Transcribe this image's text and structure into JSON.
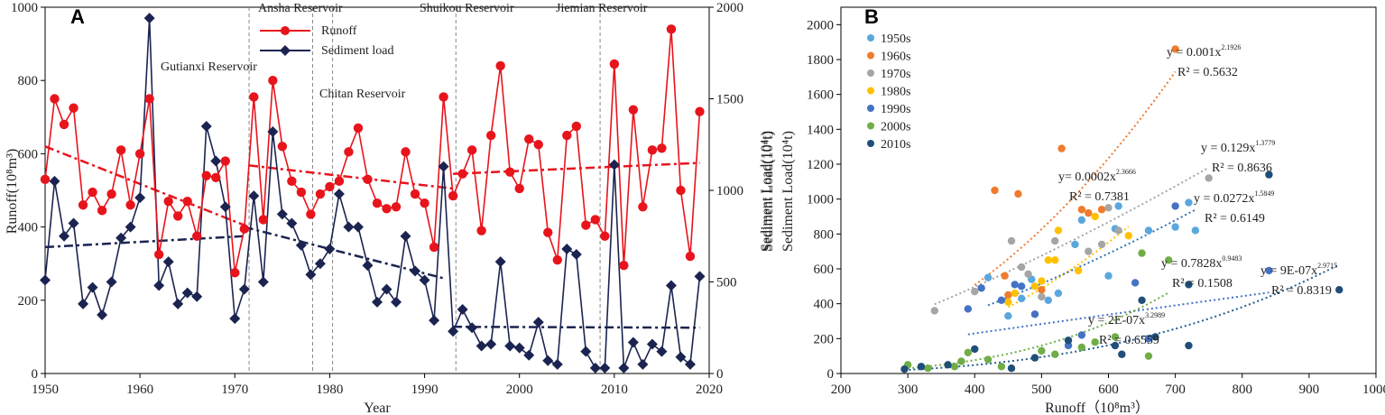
{
  "chart_data": [
    {
      "panel": "A",
      "type": "line",
      "xlabel": "Year",
      "ylabel_left": "Runoff(10⁸m³)",
      "ylabel_right": "Sediment Load(10⁴t)",
      "xlim": [
        1950,
        2020
      ],
      "ylim_left": [
        0,
        1000
      ],
      "ylim_right": [
        0,
        2000
      ],
      "x_ticks": [
        1950,
        1960,
        1970,
        1980,
        1990,
        2000,
        2010,
        2020
      ],
      "y_ticks_left": [
        0,
        200,
        400,
        600,
        800,
        1000
      ],
      "y_ticks_right": [
        0,
        500,
        1000,
        1500,
        2000
      ],
      "legend": [
        "Runoff",
        "Sediment load"
      ],
      "colors": {
        "runoff": "#e8141c",
        "sediment": "#1b2450",
        "vline": "#888888"
      },
      "reservoirs": [
        {
          "name": "Gutianxi Reservoir",
          "year": 1971.5
        },
        {
          "name": "Ansha Reservoir",
          "year": 1978.2
        },
        {
          "name": "Chitan Reservoir",
          "year": 1980.3
        },
        {
          "name": "Shuikou Reservoir",
          "year": 1993.3
        },
        {
          "name": "Jiemian Reservoir",
          "year": 2008.5
        }
      ],
      "years": [
        1950,
        1951,
        1952,
        1953,
        1954,
        1955,
        1956,
        1957,
        1958,
        1959,
        1960,
        1961,
        1962,
        1963,
        1964,
        1965,
        1966,
        1967,
        1968,
        1969,
        1970,
        1971,
        1972,
        1973,
        1974,
        1975,
        1976,
        1977,
        1978,
        1979,
        1980,
        1981,
        1982,
        1983,
        1984,
        1985,
        1986,
        1987,
        1988,
        1989,
        1990,
        1991,
        1992,
        1993,
        1994,
        1995,
        1996,
        1997,
        1998,
        1999,
        2000,
        2001,
        2002,
        2003,
        2004,
        2005,
        2006,
        2007,
        2008,
        2009,
        2010,
        2011,
        2012,
        2013,
        2014,
        2015,
        2016,
        2017,
        2018,
        2019
      ],
      "runoff": [
        530,
        750,
        680,
        725,
        460,
        495,
        445,
        490,
        610,
        460,
        600,
        750,
        325,
        470,
        430,
        470,
        375,
        540,
        535,
        580,
        275,
        395,
        755,
        420,
        800,
        620,
        525,
        495,
        435,
        490,
        510,
        525,
        605,
        670,
        530,
        465,
        450,
        455,
        605,
        490,
        465,
        345,
        755,
        485,
        545,
        610,
        390,
        650,
        840,
        550,
        505,
        640,
        625,
        385,
        310,
        650,
        675,
        405,
        420,
        375,
        845,
        295,
        720,
        455,
        610,
        615,
        940,
        500,
        320,
        715
      ],
      "runoff_trends": [
        {
          "from": [
            1950,
            620
          ],
          "to": [
            1971,
            405
          ]
        },
        {
          "from": [
            1971.5,
            568
          ],
          "to": [
            1993,
            505
          ]
        },
        {
          "from": [
            1993,
            545
          ],
          "to": [
            2019,
            575
          ]
        }
      ],
      "sediment": [
        510,
        1050,
        750,
        820,
        380,
        470,
        320,
        500,
        740,
        800,
        960,
        1940,
        480,
        610,
        380,
        440,
        420,
        1350,
        1160,
        910,
        300,
        460,
        970,
        500,
        1320,
        870,
        820,
        700,
        540,
        600,
        680,
        980,
        800,
        800,
        590,
        390,
        460,
        390,
        750,
        560,
        510,
        290,
        1130,
        230,
        350,
        250,
        150,
        160,
        610,
        150,
        140,
        100,
        280,
        70,
        50,
        680,
        650,
        120,
        30,
        30,
        1140,
        30,
        170,
        50,
        160,
        120,
        480,
        90,
        50,
        530
      ],
      "sediment_trends": [
        {
          "from": [
            1950,
            690
          ],
          "to": [
            1971,
            750
          ]
        },
        {
          "from": [
            1971,
            800
          ],
          "to": [
            1992,
            520
          ]
        },
        {
          "from": [
            1993,
            255
          ],
          "to": [
            2019,
            250
          ]
        }
      ]
    },
    {
      "panel": "B",
      "type": "scatter",
      "xlabel": "Runoff（10⁸m³）",
      "ylabel_outer": "Sediment Load(10⁴t)",
      "ylabel_inner": "Sediment Load(10⁴t)",
      "xlim": [
        200,
        1000
      ],
      "ylim": [
        0,
        2100
      ],
      "x_ticks": [
        200,
        300,
        400,
        500,
        600,
        700,
        800,
        900,
        1000
      ],
      "y_ticks": [
        0,
        200,
        400,
        600,
        800,
        1000,
        1200,
        1400,
        1600,
        1800,
        2000
      ],
      "series": [
        {
          "name": "1950s",
          "color": "#5aa7dd",
          "points": [
            [
              420,
              550
            ],
            [
              450,
              330
            ],
            [
              470,
              430
            ],
            [
              485,
              540
            ],
            [
              510,
              420
            ],
            [
              525,
              460
            ],
            [
              550,
              740
            ],
            [
              560,
              880
            ],
            [
              600,
              560
            ],
            [
              610,
              830
            ],
            [
              615,
              960
            ],
            [
              660,
              820
            ],
            [
              700,
              840
            ],
            [
              720,
              980
            ],
            [
              730,
              820
            ]
          ]
        },
        {
          "name": "1960s",
          "color": "#ef7b2c",
          "points": [
            [
              430,
              1050
            ],
            [
              445,
              560
            ],
            [
              450,
              450
            ],
            [
              465,
              1030
            ],
            [
              500,
              480
            ],
            [
              530,
              1290
            ],
            [
              560,
              940
            ],
            [
              570,
              920
            ],
            [
              590,
              940
            ],
            [
              700,
              1860
            ]
          ]
        },
        {
          "name": "1970s",
          "color": "#a5a5a5",
          "points": [
            [
              340,
              360
            ],
            [
              400,
              470
            ],
            [
              455,
              760
            ],
            [
              470,
              610
            ],
            [
              480,
              570
            ],
            [
              500,
              440
            ],
            [
              520,
              760
            ],
            [
              570,
              700
            ],
            [
              590,
              740
            ],
            [
              600,
              950
            ],
            [
              615,
              820
            ],
            [
              750,
              1120
            ]
          ]
        },
        {
          "name": "1980s",
          "color": "#ffc000",
          "points": [
            [
              450,
              410
            ],
            [
              460,
              460
            ],
            [
              490,
              500
            ],
            [
              500,
              530
            ],
            [
              510,
              650
            ],
            [
              520,
              650
            ],
            [
              525,
              820
            ],
            [
              555,
              590
            ],
            [
              580,
              900
            ],
            [
              630,
              790
            ]
          ]
        },
        {
          "name": "1990s",
          "color": "#4472c4",
          "points": [
            [
              390,
              370
            ],
            [
              410,
              490
            ],
            [
              440,
              420
            ],
            [
              460,
              510
            ],
            [
              470,
              500
            ],
            [
              490,
              340
            ],
            [
              540,
              160
            ],
            [
              560,
              220
            ],
            [
              640,
              520
            ],
            [
              660,
              200
            ],
            [
              700,
              960
            ],
            [
              840,
              590
            ]
          ]
        },
        {
          "name": "2000s",
          "color": "#70ad47",
          "points": [
            [
              300,
              50
            ],
            [
              330,
              30
            ],
            [
              370,
              40
            ],
            [
              380,
              70
            ],
            [
              390,
              120
            ],
            [
              420,
              80
            ],
            [
              440,
              40
            ],
            [
              500,
              130
            ],
            [
              520,
              110
            ],
            [
              560,
              150
            ],
            [
              580,
              180
            ],
            [
              610,
              210
            ],
            [
              650,
              690
            ],
            [
              660,
              100
            ],
            [
              690,
              650
            ]
          ]
        },
        {
          "name": "2010s",
          "color": "#1f4e79",
          "points": [
            [
              295,
              25
            ],
            [
              320,
              40
            ],
            [
              360,
              50
            ],
            [
              400,
              140
            ],
            [
              455,
              30
            ],
            [
              490,
              90
            ],
            [
              540,
              190
            ],
            [
              610,
              160
            ],
            [
              620,
              110
            ],
            [
              650,
              420
            ],
            [
              670,
              210
            ],
            [
              720,
              510
            ],
            [
              720,
              160
            ],
            [
              840,
              1140
            ],
            [
              945,
              480
            ]
          ]
        }
      ],
      "trend_colors": [
        "#2e75b6",
        "#ed7d31",
        "#a5a5a5",
        "#ffc000",
        "#4472c4",
        "#70ad47",
        "#255e91"
      ],
      "fits": [
        {
          "series": "1960s",
          "a": 0.001,
          "b": 2.1926,
          "range": [
            400,
            700
          ],
          "eq_base": "y = 0.001x",
          "eq_exp": "2.1926",
          "r2": "R² = 0.5632"
        },
        {
          "series": "1970s",
          "a": 0.129,
          "b": 1.3779,
          "range": [
            340,
            750
          ],
          "eq_base": "y = 0.129x",
          "eq_exp": "1.3779",
          "r2": "R² = 0.8636"
        },
        {
          "series": "1980s",
          "a": 0.0002,
          "b": 2.3666,
          "range": [
            450,
            630
          ],
          "eq_base": "y= 0.0002x",
          "eq_exp": "2.3666",
          "r2": "R² = 0.7381"
        },
        {
          "series": "1950s",
          "a": 0.0272,
          "b": 1.5849,
          "range": [
            420,
            730
          ],
          "eq_base": "y = 0.0272x",
          "eq_exp": "1.5849",
          "r2": "R² = 0.6149"
        },
        {
          "series": "1990s",
          "a": 0.7828,
          "b": 0.9483,
          "range": [
            390,
            840
          ],
          "eq_base": "y = 0.7828x",
          "eq_exp": "0.9483",
          "r2": "R² = 0.1508"
        },
        {
          "series": "2000s",
          "a": 2e-07,
          "b": 3.2989,
          "range": [
            300,
            690
          ],
          "eq_base": "y = 2E-07x",
          "eq_exp": "3.2989",
          "r2": "R² = 0.6559"
        },
        {
          "series": "2010s",
          "a": 9e-07,
          "b": 2.9715,
          "range": [
            295,
            945
          ],
          "eq_base": "y = 9E-07x",
          "eq_exp": "2.9715",
          "r2": "R² = 0.8319"
        }
      ]
    }
  ]
}
